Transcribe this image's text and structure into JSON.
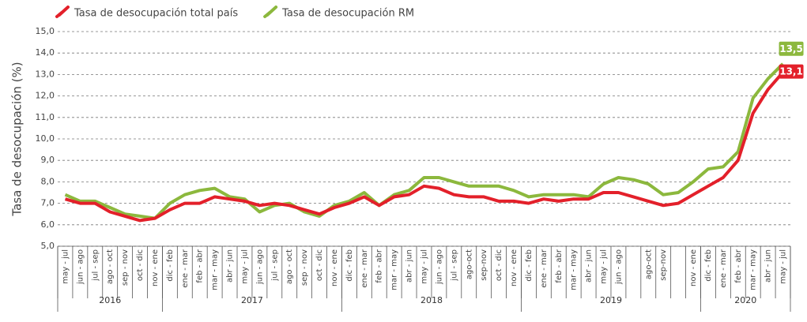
{
  "chart_data": {
    "type": "line",
    "y_label": "Tasa de desocupación (%)",
    "categories": [
      "may - jul",
      "jun - ago",
      "jul - sep",
      "ago - oct",
      "sep - nov",
      "oct - dic",
      "nov - ene",
      "dic - feb",
      "ene - mar",
      "feb - abr",
      "mar - may",
      "abr - jun",
      "may - jul",
      "jun - ago",
      "jul - sep",
      "ago - oct",
      "sep - nov",
      "oct - dic",
      "nov - ene",
      "dic - feb",
      "ene - mar",
      "feb - abr",
      "mar - may",
      "abr - jun",
      "may - jul",
      "jun - ago",
      "jul - sep",
      "ago-oct",
      "sep-nov",
      "oct - dic",
      "nov - ene",
      "dic - feb",
      "ene - mar",
      "feb - abr",
      "mar - may",
      "abr - jun",
      "may - jul",
      "jun - ago",
      null,
      "ago-oct",
      "sep-nov",
      null,
      "nov - ene",
      "dic - feb",
      "ene - mar",
      "feb - abr",
      "mar - may",
      "abr - jun",
      "may - jul"
    ],
    "groups": [
      {
        "label": "2016",
        "span": 7
      },
      {
        "label": "2017",
        "span": 12
      },
      {
        "label": "2018",
        "span": 12
      },
      {
        "label": "2019",
        "span": 12
      },
      {
        "label": "2020",
        "span": 6
      }
    ],
    "series": [
      {
        "name": "Tasa de desocupación total país",
        "color": "#e3202a",
        "values": [
          7.2,
          7.0,
          7.0,
          6.6,
          6.4,
          6.2,
          6.3,
          6.7,
          7.0,
          7.0,
          7.3,
          7.2,
          7.1,
          6.9,
          7.0,
          6.9,
          6.7,
          6.5,
          6.8,
          7.0,
          7.3,
          6.9,
          7.3,
          7.4,
          7.8,
          7.7,
          7.4,
          7.3,
          7.3,
          7.1,
          7.1,
          7.0,
          7.2,
          7.1,
          7.2,
          7.2,
          7.5,
          7.5,
          7.3,
          7.1,
          6.9,
          7.0,
          7.4,
          7.8,
          8.2,
          9.0,
          11.2,
          12.3,
          13.1
        ],
        "value_labels": [
          null,
          null,
          null,
          null,
          null,
          null,
          null,
          null,
          null,
          null,
          null,
          null,
          null,
          null,
          null,
          null,
          null,
          null,
          null,
          null,
          null,
          null,
          null,
          null,
          null,
          null,
          null,
          null,
          null,
          null,
          null,
          null,
          null,
          null,
          null,
          null,
          null,
          null,
          null,
          null,
          null,
          null,
          null,
          null,
          null,
          null,
          null,
          null,
          "13,1"
        ]
      },
      {
        "name": "Tasa de desocupación RM",
        "color": "#8cb83d",
        "values": [
          7.4,
          7.1,
          7.1,
          6.8,
          6.5,
          6.4,
          6.3,
          7.0,
          7.4,
          7.6,
          7.7,
          7.3,
          7.2,
          6.6,
          6.9,
          7.0,
          6.6,
          6.4,
          6.9,
          7.1,
          7.5,
          6.9,
          7.4,
          7.6,
          8.2,
          8.2,
          8.0,
          7.8,
          7.8,
          7.8,
          7.6,
          7.3,
          7.4,
          7.4,
          7.4,
          7.3,
          7.9,
          8.2,
          8.1,
          7.9,
          7.4,
          7.5,
          8.0,
          8.6,
          8.7,
          9.4,
          11.9,
          12.8,
          13.5
        ],
        "value_labels": [
          null,
          null,
          null,
          null,
          null,
          null,
          null,
          null,
          null,
          null,
          null,
          null,
          null,
          null,
          null,
          null,
          null,
          null,
          null,
          null,
          null,
          null,
          null,
          null,
          null,
          null,
          null,
          null,
          null,
          null,
          null,
          null,
          null,
          null,
          null,
          null,
          null,
          null,
          null,
          null,
          null,
          null,
          null,
          null,
          null,
          null,
          null,
          null,
          "13,5"
        ]
      }
    ],
    "ylim": [
      5,
      15
    ],
    "yticks": [
      {
        "value": 5,
        "label": "5,0"
      },
      {
        "value": 6,
        "label": "6,0"
      },
      {
        "value": 7,
        "label": "7,0"
      },
      {
        "value": 8,
        "label": "8,0"
      },
      {
        "value": 9,
        "label": "9,0"
      },
      {
        "value": 10,
        "label": "10,0"
      },
      {
        "value": 11,
        "label": "11,0"
      },
      {
        "value": 12,
        "label": "12,0"
      },
      {
        "value": 13,
        "label": "13,0"
      },
      {
        "value": 14,
        "label": "14,0"
      },
      {
        "value": 15,
        "label": "15,0"
      }
    ],
    "grid": true,
    "legend": "top-left"
  }
}
